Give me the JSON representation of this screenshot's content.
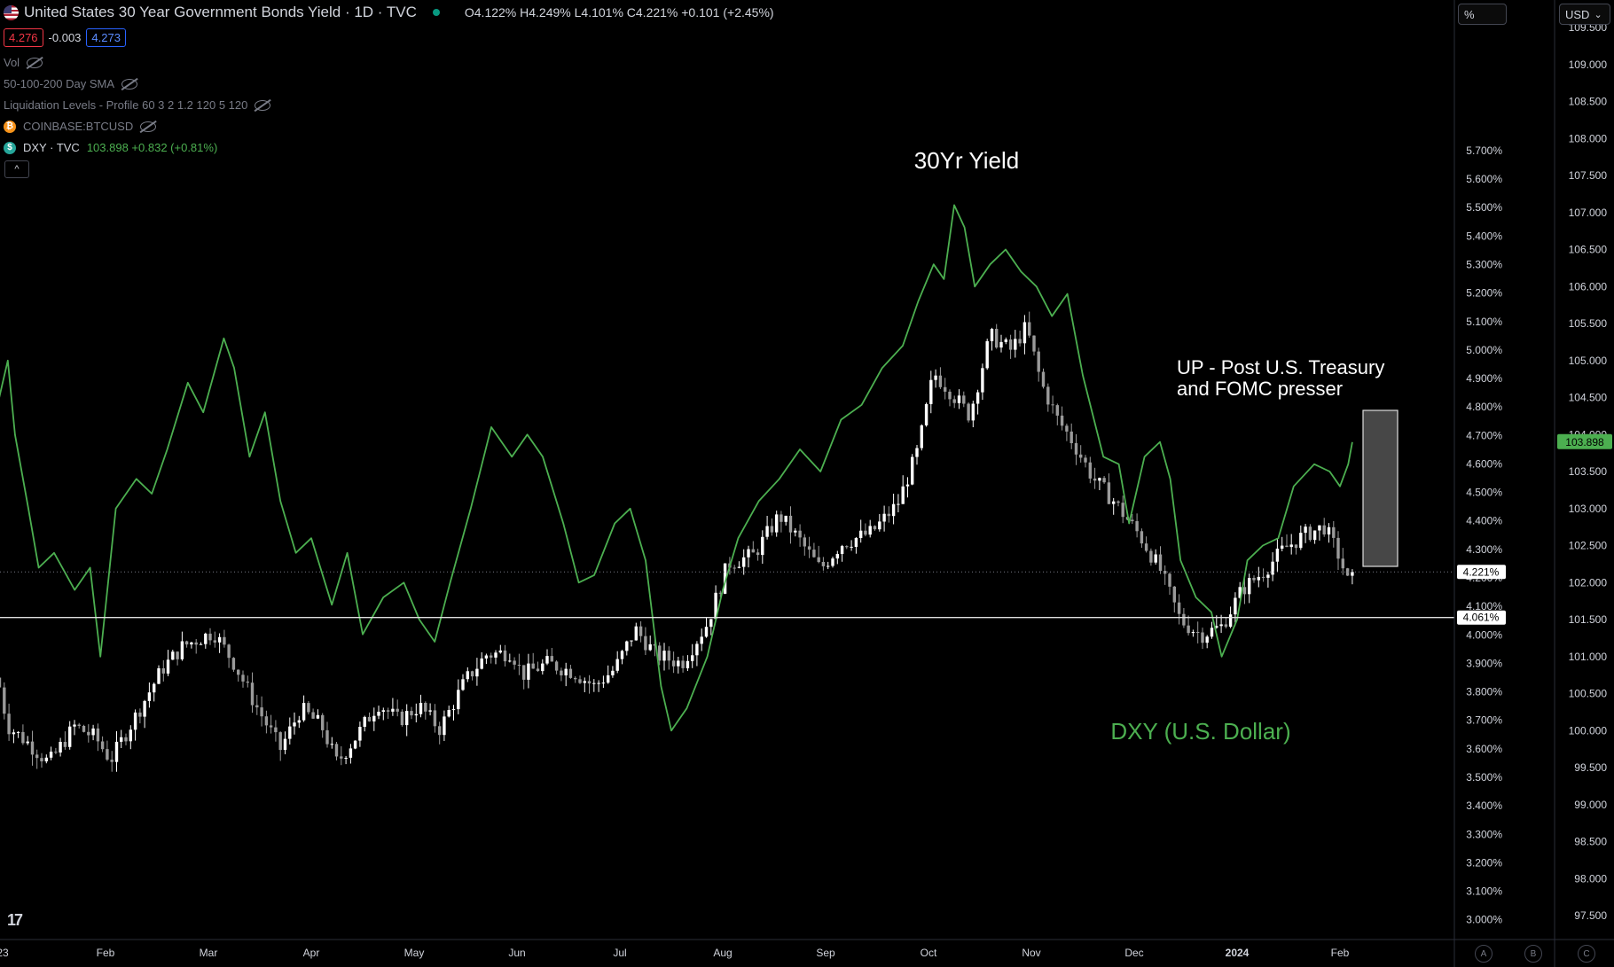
{
  "header": {
    "title": "United States 30 Year Government Bonds Yield · 1D · TVC",
    "ohlc": "O4.122% H4.249% L4.101% C4.221% +0.101 (+2.45%)"
  },
  "quote": {
    "bid": "4.276",
    "spread": "-0.003",
    "ask": "4.273"
  },
  "indicators": [
    {
      "label": "Vol",
      "icon": "eye-hidden-icon"
    },
    {
      "label": "50-100-200 Day SMA",
      "icon": "eye-hidden-icon"
    },
    {
      "label": "Liquidation Levels - Profile 60 3 2 1.2 120 5 120",
      "icon": "eye-hidden-icon"
    },
    {
      "label": "COINBASE:BTCUSD",
      "icon": "bitcoin-icon"
    }
  ],
  "dxy_legend": {
    "label": "DXY · TVC",
    "value": "103.898 +0.832 (+0.81%)"
  },
  "controls": {
    "collapse": "^",
    "scale_unit": "%",
    "currency": "USD",
    "currency_caret": "⌄",
    "logo": "17"
  },
  "corner_buttons": [
    "A",
    "B",
    "C"
  ],
  "annotations": {
    "yield_label": "30Yr Yield",
    "dxy_label": "DXY (U.S. Dollar)",
    "note_line1": "UP - Post U.S. Treasury",
    "note_line2": "and FOMC presser"
  },
  "colors": {
    "dxy": "#4caf50",
    "candle_up": "#ffffff",
    "candle_down": "#9a9a9a",
    "background": "#000000"
  },
  "chart_data": [
    {
      "type": "candlestick",
      "title": "United States 30 Year Government Bonds Yield",
      "unit": "%",
      "ylim": [
        2.9,
        5.8
      ],
      "yticks": [
        "5.700%",
        "5.600%",
        "5.500%",
        "5.400%",
        "5.300%",
        "5.200%",
        "5.100%",
        "5.000%",
        "4.900%",
        "4.800%",
        "4.700%",
        "4.600%",
        "4.500%",
        "4.400%",
        "4.300%",
        "4.200%",
        "4.100%",
        "4.000%",
        "3.900%",
        "3.800%",
        "3.700%",
        "3.600%",
        "3.500%",
        "3.400%",
        "3.300%",
        "3.200%",
        "3.100%",
        "3.000%"
      ],
      "ytick_values": [
        5.7,
        5.6,
        5.5,
        5.4,
        5.3,
        5.2,
        5.1,
        5.0,
        4.9,
        4.8,
        4.7,
        4.6,
        4.5,
        4.4,
        4.3,
        4.2,
        4.1,
        4.0,
        3.9,
        3.8,
        3.7,
        3.6,
        3.5,
        3.4,
        3.3,
        3.2,
        3.1,
        3.0
      ],
      "x_labels": [
        "23",
        "Feb",
        "Mar",
        "Apr",
        "May",
        "Jun",
        "Jul",
        "Aug",
        "Sep",
        "Oct",
        "Nov",
        "Dec",
        "2024",
        "Feb"
      ],
      "x_label_months": [
        0,
        1,
        2,
        3,
        4,
        5,
        6,
        7,
        8,
        9,
        10,
        11,
        12,
        13
      ],
      "last_close": 4.221,
      "last_close_label": "4.221%",
      "support_level": 4.061,
      "support_label": "4.061%",
      "close_path": [
        {
          "m": -0.05,
          "v": 3.85
        },
        {
          "m": 0.05,
          "v": 3.68
        },
        {
          "m": 0.25,
          "v": 3.62
        },
        {
          "m": 0.45,
          "v": 3.55
        },
        {
          "m": 0.7,
          "v": 3.68
        },
        {
          "m": 0.9,
          "v": 3.64
        },
        {
          "m": 1.05,
          "v": 3.56
        },
        {
          "m": 1.3,
          "v": 3.72
        },
        {
          "m": 1.55,
          "v": 3.88
        },
        {
          "m": 1.75,
          "v": 3.96
        },
        {
          "m": 2.05,
          "v": 4.01
        },
        {
          "m": 2.25,
          "v": 3.9
        },
        {
          "m": 2.45,
          "v": 3.76
        },
        {
          "m": 2.7,
          "v": 3.6
        },
        {
          "m": 2.9,
          "v": 3.74
        },
        {
          "m": 3.1,
          "v": 3.68
        },
        {
          "m": 3.25,
          "v": 3.55
        },
        {
          "m": 3.45,
          "v": 3.65
        },
        {
          "m": 3.65,
          "v": 3.76
        },
        {
          "m": 3.85,
          "v": 3.7
        },
        {
          "m": 4.05,
          "v": 3.75
        },
        {
          "m": 4.25,
          "v": 3.67
        },
        {
          "m": 4.5,
          "v": 3.84
        },
        {
          "m": 4.7,
          "v": 3.93
        },
        {
          "m": 4.95,
          "v": 3.94
        },
        {
          "m": 5.05,
          "v": 3.86
        },
        {
          "m": 5.3,
          "v": 3.9
        },
        {
          "m": 5.55,
          "v": 3.87
        },
        {
          "m": 5.75,
          "v": 3.82
        },
        {
          "m": 5.95,
          "v": 3.88
        },
        {
          "m": 6.15,
          "v": 4.02
        },
        {
          "m": 6.35,
          "v": 3.93
        },
        {
          "m": 6.6,
          "v": 3.9
        },
        {
          "m": 6.85,
          "v": 4.04
        },
        {
          "m": 7.05,
          "v": 4.25
        },
        {
          "m": 7.3,
          "v": 4.28
        },
        {
          "m": 7.55,
          "v": 4.42
        },
        {
          "m": 7.75,
          "v": 4.33
        },
        {
          "m": 7.95,
          "v": 4.23
        },
        {
          "m": 8.15,
          "v": 4.32
        },
        {
          "m": 8.45,
          "v": 4.36
        },
        {
          "m": 8.7,
          "v": 4.46
        },
        {
          "m": 8.9,
          "v": 4.65
        },
        {
          "m": 9.05,
          "v": 4.92
        },
        {
          "m": 9.2,
          "v": 4.86
        },
        {
          "m": 9.4,
          "v": 4.77
        },
        {
          "m": 9.6,
          "v": 5.05
        },
        {
          "m": 9.8,
          "v": 5.0
        },
        {
          "m": 9.95,
          "v": 5.08
        },
        {
          "m": 10.1,
          "v": 4.88
        },
        {
          "m": 10.25,
          "v": 4.76
        },
        {
          "m": 10.4,
          "v": 4.68
        },
        {
          "m": 10.6,
          "v": 4.55
        },
        {
          "m": 10.8,
          "v": 4.47
        },
        {
          "m": 11.05,
          "v": 4.35
        },
        {
          "m": 11.25,
          "v": 4.23
        },
        {
          "m": 11.45,
          "v": 4.05
        },
        {
          "m": 11.65,
          "v": 4.0
        },
        {
          "m": 11.85,
          "v": 4.03
        },
        {
          "m": 12.05,
          "v": 4.16
        },
        {
          "m": 12.25,
          "v": 4.22
        },
        {
          "m": 12.45,
          "v": 4.3
        },
        {
          "m": 12.65,
          "v": 4.35
        },
        {
          "m": 12.85,
          "v": 4.38
        },
        {
          "m": 13.0,
          "v": 4.27
        },
        {
          "m": 13.08,
          "v": 4.18
        },
        {
          "m": 13.12,
          "v": 4.22
        }
      ]
    },
    {
      "type": "line",
      "title": "DXY · TVC",
      "series_name": "DXY (U.S. Dollar)",
      "unit": "USD",
      "ylim": [
        97.0,
        109.7
      ],
      "yticks": [
        "109.500",
        "109.000",
        "108.500",
        "108.000",
        "107.500",
        "107.000",
        "106.500",
        "106.000",
        "105.500",
        "105.000",
        "104.500",
        "104.000",
        "103.500",
        "103.000",
        "102.500",
        "102.000",
        "101.500",
        "101.000",
        "100.500",
        "100.000",
        "99.500",
        "99.000",
        "98.500",
        "98.000",
        "97.500"
      ],
      "ytick_values": [
        109.5,
        109.0,
        108.5,
        108.0,
        107.5,
        107.0,
        106.5,
        106.0,
        105.5,
        105.0,
        104.5,
        104.0,
        103.5,
        103.0,
        102.5,
        102.0,
        101.5,
        101.0,
        100.5,
        100.0,
        99.5,
        99.0,
        98.5,
        98.0,
        97.5
      ],
      "last_value": 103.898,
      "last_value_label": "103.898",
      "points": [
        {
          "m": -0.05,
          "v": 104.4
        },
        {
          "m": 0.05,
          "v": 105.0
        },
        {
          "m": 0.12,
          "v": 104.0
        },
        {
          "m": 0.25,
          "v": 103.0
        },
        {
          "m": 0.35,
          "v": 102.2
        },
        {
          "m": 0.5,
          "v": 102.4
        },
        {
          "m": 0.7,
          "v": 101.9
        },
        {
          "m": 0.85,
          "v": 102.2
        },
        {
          "m": 0.95,
          "v": 101.0
        },
        {
          "m": 1.1,
          "v": 103.0
        },
        {
          "m": 1.3,
          "v": 103.4
        },
        {
          "m": 1.45,
          "v": 103.2
        },
        {
          "m": 1.6,
          "v": 103.8
        },
        {
          "m": 1.8,
          "v": 104.7
        },
        {
          "m": 1.95,
          "v": 104.3
        },
        {
          "m": 2.15,
          "v": 105.3
        },
        {
          "m": 2.25,
          "v": 104.9
        },
        {
          "m": 2.4,
          "v": 103.7
        },
        {
          "m": 2.55,
          "v": 104.3
        },
        {
          "m": 2.7,
          "v": 103.1
        },
        {
          "m": 2.85,
          "v": 102.4
        },
        {
          "m": 3.0,
          "v": 102.6
        },
        {
          "m": 3.2,
          "v": 101.7
        },
        {
          "m": 3.35,
          "v": 102.4
        },
        {
          "m": 3.5,
          "v": 101.3
        },
        {
          "m": 3.7,
          "v": 101.8
        },
        {
          "m": 3.9,
          "v": 102.0
        },
        {
          "m": 4.05,
          "v": 101.5
        },
        {
          "m": 4.2,
          "v": 101.2
        },
        {
          "m": 4.35,
          "v": 102.0
        },
        {
          "m": 4.55,
          "v": 103.0
        },
        {
          "m": 4.75,
          "v": 104.1
        },
        {
          "m": 4.95,
          "v": 103.7
        },
        {
          "m": 5.1,
          "v": 104.0
        },
        {
          "m": 5.25,
          "v": 103.7
        },
        {
          "m": 5.45,
          "v": 102.8
        },
        {
          "m": 5.6,
          "v": 102.0
        },
        {
          "m": 5.75,
          "v": 102.1
        },
        {
          "m": 5.95,
          "v": 102.8
        },
        {
          "m": 6.1,
          "v": 103.0
        },
        {
          "m": 6.25,
          "v": 102.3
        },
        {
          "m": 6.4,
          "v": 100.6
        },
        {
          "m": 6.5,
          "v": 100.0
        },
        {
          "m": 6.65,
          "v": 100.3
        },
        {
          "m": 6.85,
          "v": 101.0
        },
        {
          "m": 7.0,
          "v": 101.9
        },
        {
          "m": 7.15,
          "v": 102.6
        },
        {
          "m": 7.35,
          "v": 103.1
        },
        {
          "m": 7.55,
          "v": 103.4
        },
        {
          "m": 7.75,
          "v": 103.8
        },
        {
          "m": 7.95,
          "v": 103.5
        },
        {
          "m": 8.15,
          "v": 104.2
        },
        {
          "m": 8.35,
          "v": 104.4
        },
        {
          "m": 8.55,
          "v": 104.9
        },
        {
          "m": 8.75,
          "v": 105.2
        },
        {
          "m": 8.9,
          "v": 105.8
        },
        {
          "m": 9.05,
          "v": 106.3
        },
        {
          "m": 9.15,
          "v": 106.1
        },
        {
          "m": 9.25,
          "v": 107.1
        },
        {
          "m": 9.35,
          "v": 106.8
        },
        {
          "m": 9.45,
          "v": 106.0
        },
        {
          "m": 9.6,
          "v": 106.3
        },
        {
          "m": 9.75,
          "v": 106.5
        },
        {
          "m": 9.9,
          "v": 106.2
        },
        {
          "m": 10.05,
          "v": 106.0
        },
        {
          "m": 10.2,
          "v": 105.6
        },
        {
          "m": 10.35,
          "v": 105.9
        },
        {
          "m": 10.5,
          "v": 104.8
        },
        {
          "m": 10.7,
          "v": 103.7
        },
        {
          "m": 10.85,
          "v": 103.6
        },
        {
          "m": 10.95,
          "v": 102.8
        },
        {
          "m": 11.1,
          "v": 103.7
        },
        {
          "m": 11.25,
          "v": 103.9
        },
        {
          "m": 11.35,
          "v": 103.4
        },
        {
          "m": 11.45,
          "v": 102.3
        },
        {
          "m": 11.6,
          "v": 101.8
        },
        {
          "m": 11.75,
          "v": 101.6
        },
        {
          "m": 11.85,
          "v": 101.0
        },
        {
          "m": 12.0,
          "v": 101.5
        },
        {
          "m": 12.1,
          "v": 102.3
        },
        {
          "m": 12.25,
          "v": 102.5
        },
        {
          "m": 12.4,
          "v": 102.6
        },
        {
          "m": 12.55,
          "v": 103.3
        },
        {
          "m": 12.75,
          "v": 103.6
        },
        {
          "m": 12.9,
          "v": 103.5
        },
        {
          "m": 13.0,
          "v": 103.3
        },
        {
          "m": 13.08,
          "v": 103.6
        },
        {
          "m": 13.12,
          "v": 103.898
        }
      ]
    }
  ]
}
